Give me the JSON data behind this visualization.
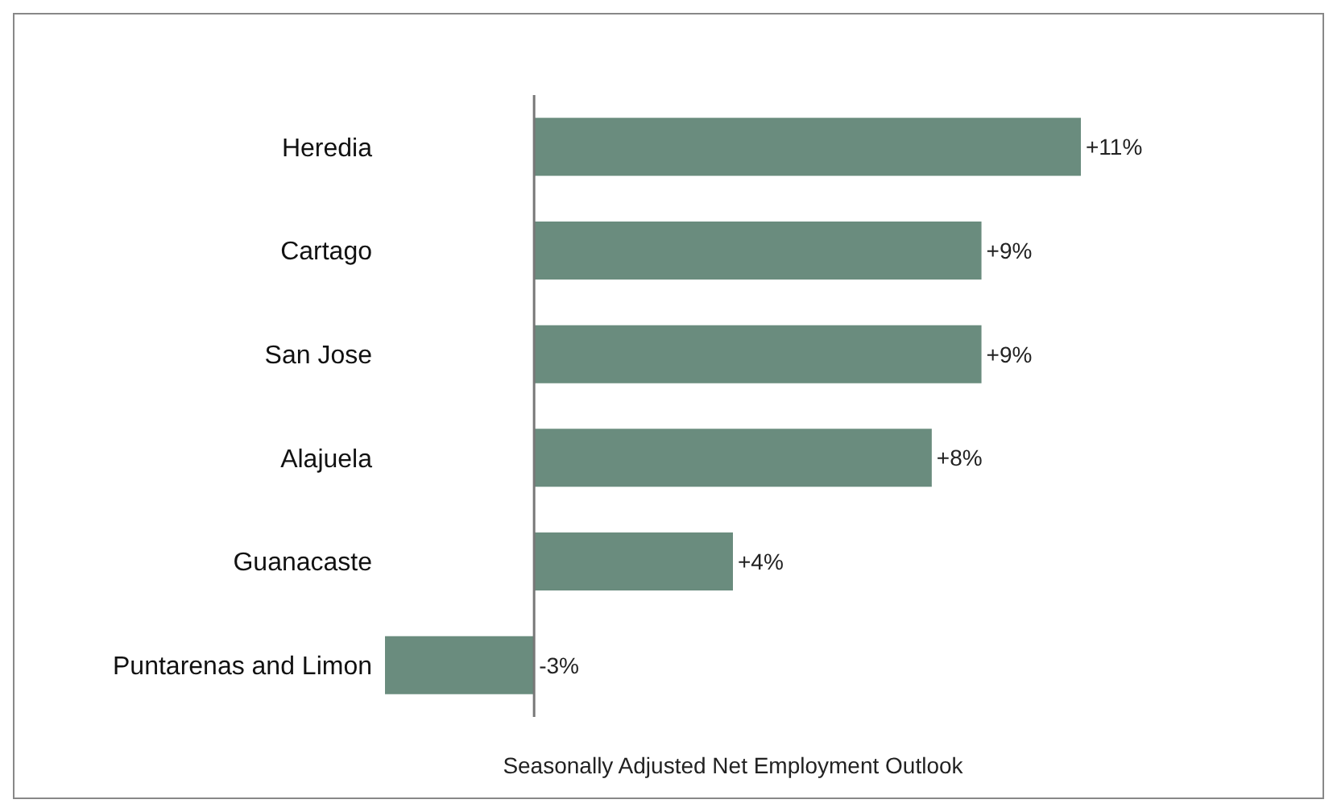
{
  "chart_data": {
    "type": "bar",
    "orientation": "horizontal",
    "xlabel": "Seasonally Adjusted Net Employment Outlook",
    "categories": [
      "Heredia",
      "Cartago",
      "San Jose",
      "Alajuela",
      "Guanacaste",
      "Puntarenas and Limon"
    ],
    "values": [
      11,
      9,
      9,
      8,
      4,
      -3
    ],
    "value_labels": [
      "+11%",
      "+9%",
      "+9%",
      "+8%",
      "+4%",
      "-3%"
    ],
    "color": "#6a8c7e",
    "grid": false,
    "legend": false
  }
}
